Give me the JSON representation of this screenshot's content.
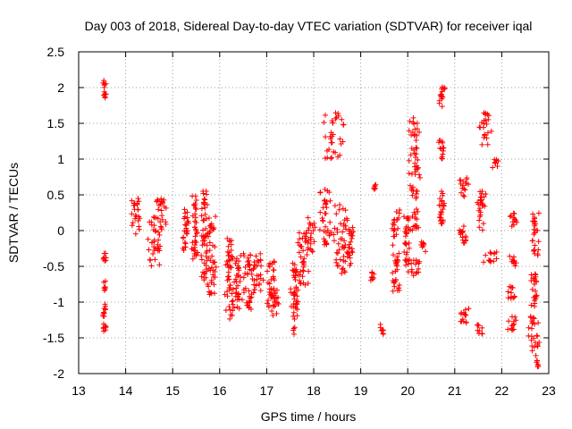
{
  "chart_data": {
    "type": "scatter",
    "title": "Day 003 of 2018, Sidereal Day-to-day VTEC variation (SDTVAR) for receiver iqal",
    "xlabel": "GPS time / hours",
    "ylabel": "SDTVAR / TECUs",
    "xlim": [
      13,
      23
    ],
    "ylim": [
      -2,
      2.5
    ],
    "xticks": [
      "13",
      "14",
      "15",
      "16",
      "17",
      "18",
      "19",
      "20",
      "21",
      "22",
      "23"
    ],
    "yticks": [
      "2.5",
      "2",
      "1.5",
      "1",
      "0.5",
      "0",
      "-0.5",
      "-1",
      "-1.5",
      "-2"
    ],
    "grid": true,
    "marker": "+",
    "color": "#ff0000",
    "clusters": [
      {
        "x": [
          13.5,
          13.6
        ],
        "y": [
          1.8,
          2.1
        ]
      },
      {
        "x": [
          13.5,
          13.6
        ],
        "y": [
          -0.45,
          -0.3
        ]
      },
      {
        "x": [
          13.5,
          13.6
        ],
        "y": [
          -0.85,
          -0.7
        ]
      },
      {
        "x": [
          13.5,
          13.6
        ],
        "y": [
          -1.2,
          -1.0
        ]
      },
      {
        "x": [
          13.5,
          13.6
        ],
        "y": [
          -1.45,
          -1.3
        ]
      },
      {
        "x": [
          14.1,
          14.35
        ],
        "y": [
          -0.05,
          0.45
        ]
      },
      {
        "x": [
          14.45,
          14.8
        ],
        "y": [
          -0.5,
          0.2
        ]
      },
      {
        "x": [
          14.6,
          14.9
        ],
        "y": [
          0.0,
          0.45
        ]
      },
      {
        "x": [
          15.2,
          15.35
        ],
        "y": [
          -0.3,
          0.3
        ]
      },
      {
        "x": [
          15.4,
          15.55
        ],
        "y": [
          -0.4,
          0.5
        ]
      },
      {
        "x": [
          15.6,
          15.75
        ],
        "y": [
          -0.7,
          0.6
        ]
      },
      {
        "x": [
          15.7,
          15.95
        ],
        "y": [
          -0.9,
          0.2
        ]
      },
      {
        "x": [
          16.1,
          16.3
        ],
        "y": [
          -1.25,
          -0.1
        ]
      },
      {
        "x": [
          16.25,
          16.5
        ],
        "y": [
          -1.1,
          -0.3
        ]
      },
      {
        "x": [
          16.5,
          16.75
        ],
        "y": [
          -1.1,
          -0.25
        ]
      },
      {
        "x": [
          16.65,
          16.95
        ],
        "y": [
          -0.85,
          -0.3
        ]
      },
      {
        "x": [
          17.0,
          17.2
        ],
        "y": [
          -1.1,
          -0.4
        ]
      },
      {
        "x": [
          17.05,
          17.3
        ],
        "y": [
          -1.2,
          -0.8
        ]
      },
      {
        "x": [
          17.5,
          17.7
        ],
        "y": [
          -1.45,
          -0.4
        ]
      },
      {
        "x": [
          17.6,
          17.9
        ],
        "y": [
          -0.8,
          0.0
        ]
      },
      {
        "x": [
          17.8,
          18.05
        ],
        "y": [
          -0.3,
          0.2
        ]
      },
      {
        "x": [
          18.1,
          18.4
        ],
        "y": [
          -0.2,
          0.6
        ]
      },
      {
        "x": [
          18.2,
          18.65
        ],
        "y": [
          1.0,
          1.65
        ]
      },
      {
        "x": [
          18.4,
          18.75
        ],
        "y": [
          -0.6,
          0.4
        ]
      },
      {
        "x": [
          18.7,
          18.85
        ],
        "y": [
          -0.5,
          0.1
        ]
      },
      {
        "x": [
          19.25,
          19.35
        ],
        "y": [
          0.55,
          0.65
        ]
      },
      {
        "x": [
          19.2,
          19.3
        ],
        "y": [
          -0.7,
          -0.55
        ]
      },
      {
        "x": [
          19.4,
          19.5
        ],
        "y": [
          -1.45,
          -1.3
        ]
      },
      {
        "x": [
          19.65,
          19.85
        ],
        "y": [
          -0.85,
          0.3
        ]
      },
      {
        "x": [
          19.9,
          20.05
        ],
        "y": [
          -0.5,
          0.2
        ]
      },
      {
        "x": [
          20.0,
          20.3
        ],
        "y": [
          0.0,
          1.6
        ]
      },
      {
        "x": [
          20.0,
          20.3
        ],
        "y": [
          -0.65,
          -0.4
        ]
      },
      {
        "x": [
          20.25,
          20.4
        ],
        "y": [
          -0.3,
          -0.15
        ]
      },
      {
        "x": [
          20.65,
          20.8
        ],
        "y": [
          1.7,
          2.05
        ]
      },
      {
        "x": [
          20.65,
          20.8
        ],
        "y": [
          1.0,
          1.3
        ]
      },
      {
        "x": [
          20.65,
          20.8
        ],
        "y": [
          0.0,
          0.55
        ]
      },
      {
        "x": [
          21.1,
          21.3
        ],
        "y": [
          0.45,
          0.75
        ]
      },
      {
        "x": [
          21.05,
          21.3
        ],
        "y": [
          -0.2,
          0.1
        ]
      },
      {
        "x": [
          21.1,
          21.3
        ],
        "y": [
          -1.3,
          -1.05
        ]
      },
      {
        "x": [
          21.45,
          21.6
        ],
        "y": [
          -1.45,
          -1.3
        ]
      },
      {
        "x": [
          21.45,
          21.7
        ],
        "y": [
          0.0,
          0.55
        ]
      },
      {
        "x": [
          21.5,
          21.8
        ],
        "y": [
          1.2,
          1.65
        ]
      },
      {
        "x": [
          21.6,
          21.95
        ],
        "y": [
          -0.45,
          -0.3
        ]
      },
      {
        "x": [
          21.8,
          21.95
        ],
        "y": [
          0.85,
          1.0
        ]
      },
      {
        "x": [
          22.15,
          22.35
        ],
        "y": [
          0.05,
          0.25
        ]
      },
      {
        "x": [
          22.15,
          22.35
        ],
        "y": [
          -0.5,
          -0.35
        ]
      },
      {
        "x": [
          22.1,
          22.3
        ],
        "y": [
          -0.95,
          -0.75
        ]
      },
      {
        "x": [
          22.1,
          22.35
        ],
        "y": [
          -1.4,
          -1.2
        ]
      },
      {
        "x": [
          22.6,
          22.8
        ],
        "y": [
          -0.35,
          0.25
        ]
      },
      {
        "x": [
          22.6,
          22.8
        ],
        "y": [
          -1.1,
          -0.6
        ]
      },
      {
        "x": [
          22.55,
          22.8
        ],
        "y": [
          -1.75,
          -1.2
        ]
      },
      {
        "x": [
          22.7,
          22.8
        ],
        "y": [
          -1.95,
          -1.8
        ]
      }
    ]
  }
}
